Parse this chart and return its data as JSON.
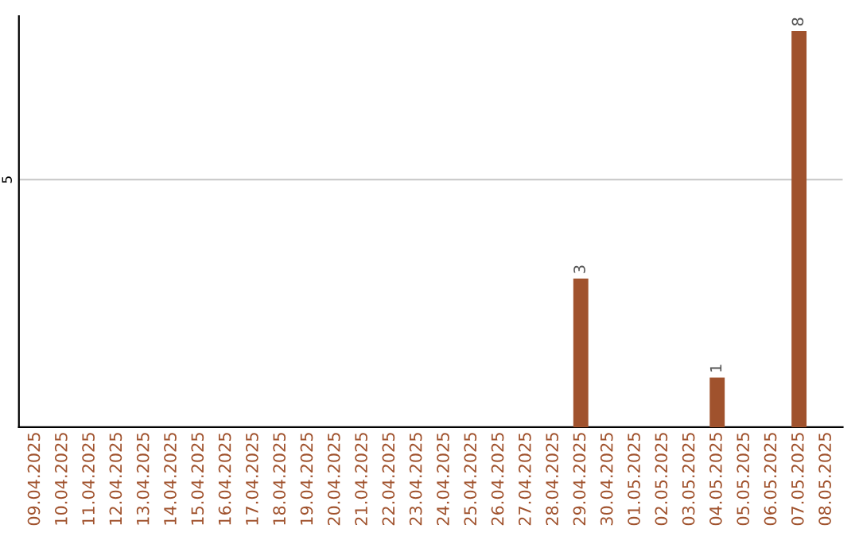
{
  "chart_data": {
    "type": "bar",
    "categories": [
      "09.04.2025",
      "10.04.2025",
      "11.04.2025",
      "12.04.2025",
      "13.04.2025",
      "14.04.2025",
      "15.04.2025",
      "16.04.2025",
      "17.04.2025",
      "18.04.2025",
      "19.04.2025",
      "20.04.2025",
      "21.04.2025",
      "22.04.2025",
      "23.04.2025",
      "24.04.2025",
      "25.04.2025",
      "26.04.2025",
      "27.04.2025",
      "28.04.2025",
      "29.04.2025",
      "30.04.2025",
      "01.05.2025",
      "02.05.2025",
      "03.05.2025",
      "04.05.2025",
      "05.05.2025",
      "06.05.2025",
      "07.05.2025",
      "08.05.2025"
    ],
    "values": [
      null,
      null,
      null,
      null,
      null,
      null,
      null,
      null,
      null,
      null,
      null,
      null,
      null,
      null,
      null,
      null,
      null,
      null,
      null,
      null,
      3,
      null,
      null,
      null,
      null,
      1,
      null,
      null,
      8,
      null
    ],
    "ylim": [
      0,
      8.3
    ],
    "yticks": [
      5
    ],
    "grid": "y",
    "color": "#a0522d",
    "data_labels": true
  }
}
